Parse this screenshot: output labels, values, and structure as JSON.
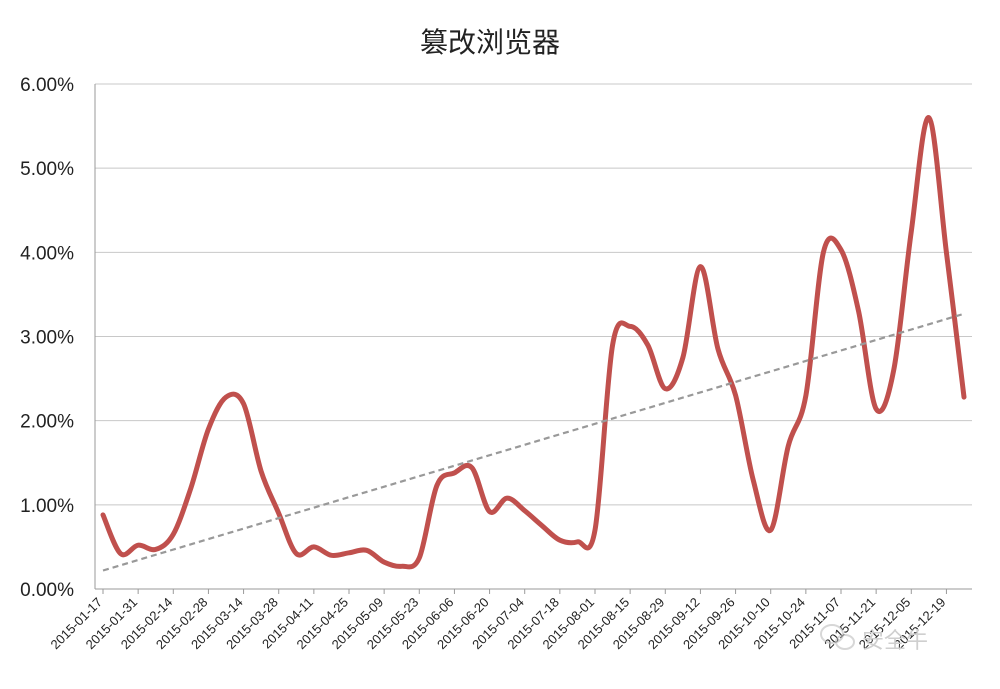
{
  "chart_data": {
    "type": "line",
    "title": "篡改浏览器",
    "xlabel": "",
    "ylabel": "",
    "ylim": [
      0,
      6
    ],
    "y_tick_labels": [
      "0.00%",
      "1.00%",
      "2.00%",
      "3.00%",
      "4.00%",
      "5.00%",
      "6.00%"
    ],
    "x_tick_labels": [
      "2015-01-17",
      "2015-01-31",
      "2015-02-14",
      "2015-02-28",
      "2015-03-14",
      "2015-03-28",
      "2015-04-11",
      "2015-04-25",
      "2015-05-09",
      "2015-05-23",
      "2015-06-06",
      "2015-06-20",
      "2015-07-04",
      "2015-07-18",
      "2015-08-01",
      "2015-08-15",
      "2015-08-29",
      "2015-09-12",
      "2015-09-26",
      "2015-10-10",
      "2015-10-24",
      "2015-11-07",
      "2015-11-21",
      "2015-12-05",
      "2015-12-19"
    ],
    "grid": true,
    "legend": "none",
    "series": [
      {
        "color": "#c0504d",
        "x": [
          "2015-01-17",
          "2015-01-24",
          "2015-01-31",
          "2015-02-07",
          "2015-02-14",
          "2015-02-21",
          "2015-02-28",
          "2015-03-07",
          "2015-03-14",
          "2015-03-21",
          "2015-03-28",
          "2015-04-04",
          "2015-04-11",
          "2015-04-18",
          "2015-04-25",
          "2015-05-02",
          "2015-05-09",
          "2015-05-16",
          "2015-05-23",
          "2015-05-30",
          "2015-06-06",
          "2015-06-13",
          "2015-06-20",
          "2015-06-27",
          "2015-07-04",
          "2015-07-11",
          "2015-07-18",
          "2015-07-25",
          "2015-08-01",
          "2015-08-08",
          "2015-08-15",
          "2015-08-22",
          "2015-08-29",
          "2015-09-05",
          "2015-09-12",
          "2015-09-19",
          "2015-09-26",
          "2015-10-03",
          "2015-10-10",
          "2015-10-17",
          "2015-10-24",
          "2015-10-31",
          "2015-11-07",
          "2015-11-14",
          "2015-11-21",
          "2015-11-28",
          "2015-12-05",
          "2015-12-12",
          "2015-12-19",
          "2015-12-26"
        ],
        "values": [
          0.88,
          0.42,
          0.52,
          0.47,
          0.65,
          1.2,
          1.9,
          2.28,
          2.2,
          1.4,
          0.9,
          0.42,
          0.5,
          0.4,
          0.43,
          0.46,
          0.32,
          0.27,
          0.37,
          1.23,
          1.38,
          1.44,
          0.92,
          1.08,
          0.93,
          0.75,
          0.58,
          0.56,
          0.7,
          2.9,
          3.12,
          2.9,
          2.38,
          2.75,
          3.83,
          2.85,
          2.3,
          1.3,
          0.7,
          1.7,
          2.3,
          4.0,
          4.03,
          3.3,
          2.14,
          2.6,
          4.25,
          5.6,
          4.0,
          2.28
        ]
      },
      {
        "color": "#999999",
        "style": "dashed",
        "x": [
          "2015-01-17",
          "2015-12-26"
        ],
        "values": [
          0.22,
          3.27
        ]
      }
    ]
  },
  "watermark": {
    "text": "安全牛",
    "icon": "wechat-icon"
  }
}
